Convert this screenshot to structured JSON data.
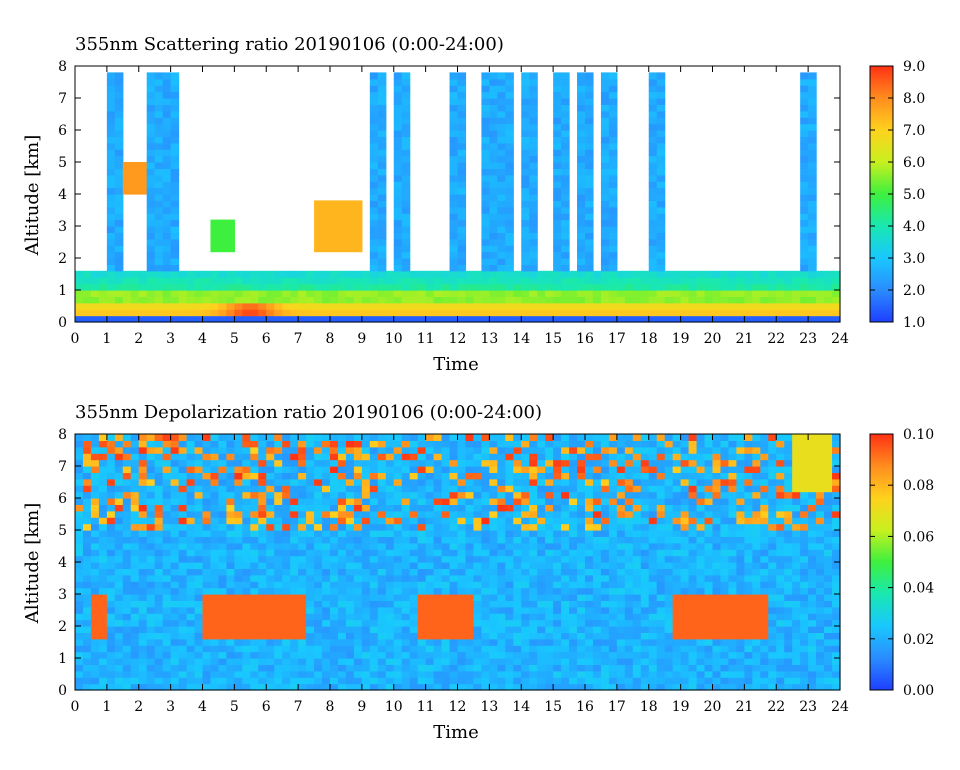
{
  "chart_data": [
    {
      "type": "heatmap",
      "title": "355nm Scattering ratio  20190106 (0:00-24:00)",
      "xlabel": "Time",
      "ylabel": "Altitude [km]",
      "xlim": [
        0,
        24
      ],
      "ylim": [
        0,
        8
      ],
      "x_ticks": [
        "0",
        "1",
        "2",
        "3",
        "4",
        "5",
        "6",
        "7",
        "8",
        "9",
        "10",
        "11",
        "12",
        "13",
        "14",
        "15",
        "16",
        "17",
        "18",
        "19",
        "20",
        "21",
        "22",
        "23",
        "24"
      ],
      "y_ticks": [
        "0",
        "1",
        "2",
        "3",
        "4",
        "5",
        "6",
        "7",
        "8"
      ],
      "colorbar": {
        "min": 1.0,
        "max": 9.0,
        "tick_labels": [
          "1.0",
          "2.0",
          "3.0",
          "4.0",
          "5.0",
          "6.0",
          "7.0",
          "8.0",
          "9.0"
        ],
        "colors": [
          "#1f3fff",
          "#2a8cff",
          "#19c8ff",
          "#19e8b0",
          "#3ef03e",
          "#c8f01e",
          "#ffd21e",
          "#ff8c1e",
          "#ff3214"
        ]
      },
      "features": {
        "boundary_layer_top_km": 1.6,
        "high_layer_top_km": 0.5,
        "cloud_columns_hours": [
          1.3,
          2.6,
          3.1,
          9.6,
          10.3,
          12.1,
          12.9,
          13.6,
          14.3,
          15.2,
          16.0,
          16.8,
          18.3,
          22.9
        ]
      }
    },
    {
      "type": "heatmap",
      "title": "355nm Depolarization ratio  20190106 (0:00-24:00)",
      "xlabel": "Time",
      "ylabel": "Altitude [km]",
      "xlim": [
        0,
        24
      ],
      "ylim": [
        0,
        8
      ],
      "x_ticks": [
        "0",
        "1",
        "2",
        "3",
        "4",
        "5",
        "6",
        "7",
        "8",
        "9",
        "10",
        "11",
        "12",
        "13",
        "14",
        "15",
        "16",
        "17",
        "18",
        "19",
        "20",
        "21",
        "22",
        "23",
        "24"
      ],
      "y_ticks": [
        "0",
        "1",
        "2",
        "3",
        "4",
        "5",
        "6",
        "7",
        "8"
      ],
      "colorbar": {
        "min": 0.0,
        "max": 0.1,
        "tick_labels": [
          "0.00",
          "0.02",
          "0.04",
          "0.06",
          "0.08",
          "0.10"
        ],
        "colors": [
          "#1f3fff",
          "#2a8cff",
          "#19c8ff",
          "#19e8b0",
          "#3ef03e",
          "#c8f01e",
          "#ffd21e",
          "#ff8c1e",
          "#ff3214"
        ]
      },
      "features": {
        "high_depol_regions_hours": [
          [
            0.5,
            0.9
          ],
          [
            4.0,
            7.3
          ],
          [
            10.8,
            12.5
          ],
          [
            18.8,
            21.8
          ]
        ]
      }
    }
  ]
}
